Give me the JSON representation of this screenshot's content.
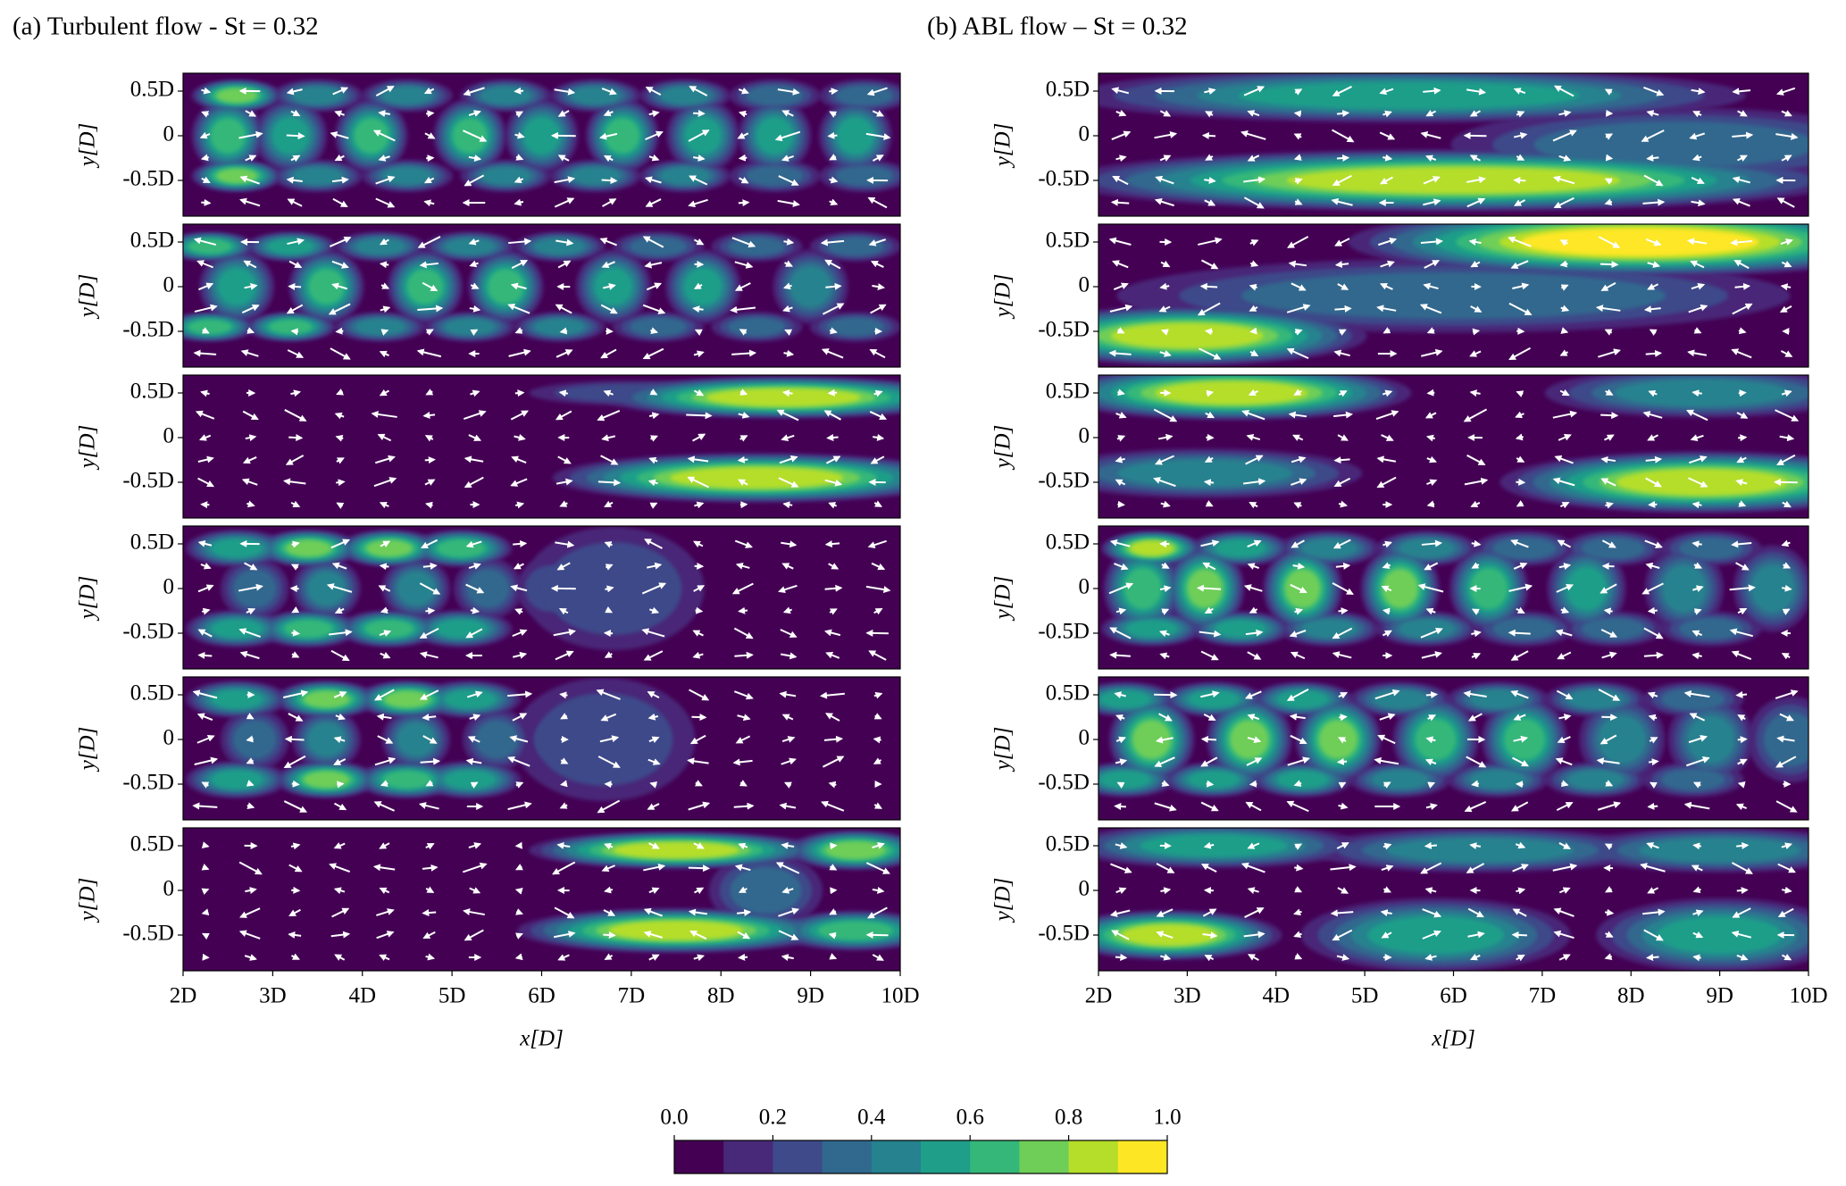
{
  "chart_data": [
    {
      "type": "contour",
      "title": "(a) Turbulent flow - St = 0.32",
      "xlabel": "x[D]",
      "ylabel": "y[D]",
      "xlim": [
        2,
        10
      ],
      "ylim": [
        -0.9,
        0.7
      ],
      "xticks": [
        {
          "value": 2,
          "label": "2D"
        },
        {
          "value": 3,
          "label": "3D"
        },
        {
          "value": 4,
          "label": "4D"
        },
        {
          "value": 5,
          "label": "5D"
        },
        {
          "value": 6,
          "label": "6D"
        },
        {
          "value": 7,
          "label": "7D"
        },
        {
          "value": 8,
          "label": "8D"
        },
        {
          "value": 9,
          "label": "9D"
        },
        {
          "value": 10,
          "label": "10D"
        }
      ],
      "yticks": [
        {
          "value": 0.5,
          "label": "0.5D"
        },
        0,
        {
          "value": -0.5,
          "label": "-0.5D"
        }
      ]
    },
    {
      "type": "contour",
      "title": "(b) ABL flow – St = 0.32",
      "xlabel": "x[D]",
      "ylabel": "y[D]",
      "xlim": [
        2,
        10
      ],
      "ylim": [
        -0.9,
        0.7
      ],
      "xticks": [
        {
          "value": 2,
          "label": "2D"
        },
        {
          "value": 3,
          "label": "3D"
        },
        {
          "value": 4,
          "label": "4D"
        },
        {
          "value": 5,
          "label": "5D"
        },
        {
          "value": 6,
          "label": "6D"
        },
        {
          "value": 7,
          "label": "7D"
        },
        {
          "value": 8,
          "label": "8D"
        },
        {
          "value": 9,
          "label": "9D"
        },
        {
          "value": 10,
          "label": "10D"
        }
      ],
      "yticks": [
        {
          "value": 0.5,
          "label": "0.5D"
        },
        0,
        {
          "value": -0.5,
          "label": "-0.5D"
        }
      ]
    },
    {
      "type": "colorbar",
      "xlim": [
        0,
        1
      ],
      "xticks": [
        {
          "value": 0,
          "label": "0.0"
        },
        0.2,
        0.4,
        0.6,
        0.8,
        {
          "value": 1,
          "label": "1.0"
        }
      ],
      "colors": [
        "#440154",
        "#482878",
        "#3e4a89",
        "#31688e",
        "#26828e",
        "#1f9e89",
        "#35b779",
        "#6ece58",
        "#b5de2b",
        "#fde725"
      ]
    }
  ]
}
